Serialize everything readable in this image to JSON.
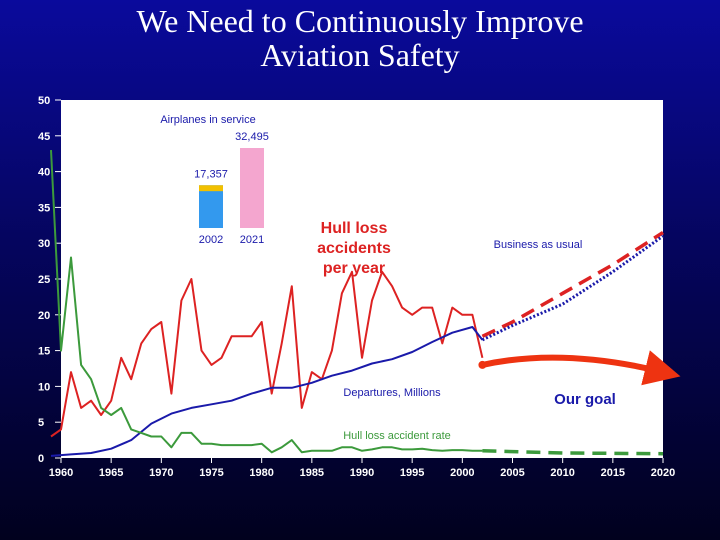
{
  "slide": {
    "title_line1": "We Need to Continuously Improve",
    "title_line2": "Aviation Safety"
  },
  "chart_data": {
    "type": "line",
    "title": "",
    "xlabel": "",
    "ylabel": "",
    "xlim": [
      1960,
      2020
    ],
    "ylim": [
      0,
      50
    ],
    "x_ticks": [
      1960,
      1965,
      1970,
      1975,
      1980,
      1985,
      1990,
      1995,
      2000,
      2005,
      2010,
      2015,
      2020
    ],
    "y_ticks": [
      0,
      5,
      10,
      15,
      20,
      25,
      30,
      35,
      40,
      45,
      50
    ],
    "grid": false,
    "series": [
      {
        "name": "Hull loss accidents per year",
        "color": "#dd2222",
        "style": "solid",
        "x": [
          1959,
          1960,
          1961,
          1962,
          1963,
          1964,
          1965,
          1966,
          1967,
          1968,
          1969,
          1970,
          1971,
          1972,
          1973,
          1974,
          1975,
          1976,
          1977,
          1978,
          1979,
          1980,
          1981,
          1982,
          1983,
          1984,
          1985,
          1986,
          1987,
          1988,
          1989,
          1990,
          1991,
          1992,
          1993,
          1994,
          1995,
          1996,
          1997,
          1998,
          1999,
          2000,
          2001,
          2002
        ],
        "values": [
          3,
          4,
          12,
          7,
          8,
          6,
          8,
          14,
          11,
          16,
          18,
          19,
          9,
          22,
          25,
          15,
          13,
          14,
          17,
          17,
          17,
          19,
          9,
          16,
          24,
          7,
          12,
          11,
          15,
          23,
          26,
          14,
          22,
          26,
          24,
          21,
          20,
          21,
          21,
          16,
          21,
          20,
          20,
          14
        ]
      },
      {
        "name": "Departures, Millions",
        "color": "#1a1aaa",
        "style": "solid",
        "x": [
          1959,
          1961,
          1963,
          1965,
          1967,
          1969,
          1971,
          1973,
          1975,
          1977,
          1979,
          1981,
          1983,
          1985,
          1987,
          1989,
          1991,
          1993,
          1995,
          1997,
          1999,
          2001,
          2002
        ],
        "values": [
          0.3,
          0.5,
          0.7,
          1.3,
          2.5,
          4.8,
          6.2,
          7.0,
          7.5,
          8.0,
          9.0,
          9.8,
          9.8,
          10.5,
          11.5,
          12.2,
          13.2,
          13.8,
          14.8,
          16.2,
          17.5,
          18.3,
          16.5
        ]
      },
      {
        "name": "Hull loss accident rate",
        "color": "#3c9a3c",
        "style": "solid",
        "x": [
          1959,
          1960,
          1961,
          1962,
          1963,
          1964,
          1965,
          1966,
          1967,
          1968,
          1969,
          1970,
          1971,
          1972,
          1973,
          1974,
          1975,
          1976,
          1977,
          1978,
          1979,
          1980,
          1981,
          1982,
          1983,
          1984,
          1985,
          1986,
          1987,
          1988,
          1989,
          1990,
          1991,
          1992,
          1993,
          1994,
          1995,
          1996,
          1997,
          1998,
          1999,
          2000,
          2001,
          2002
        ],
        "values": [
          43,
          15,
          28,
          13,
          11,
          7,
          6,
          7,
          4,
          3.5,
          3,
          3,
          1.5,
          3.5,
          3.5,
          2,
          2,
          1.8,
          1.8,
          1.8,
          1.8,
          2,
          0.8,
          1.5,
          2.5,
          0.8,
          1,
          1,
          1,
          1.5,
          1.5,
          1,
          1.2,
          1.5,
          1.5,
          1.2,
          1.2,
          1.3,
          1.1,
          1,
          1.1,
          1.1,
          1,
          1
        ]
      },
      {
        "name": "Business as usual (accidents projection)",
        "color": "#dd2222",
        "style": "dashed",
        "x": [
          2002,
          2005,
          2010,
          2015,
          2020
        ],
        "values": [
          17,
          19,
          23,
          27,
          31.5
        ]
      },
      {
        "name": "Departures projection",
        "color": "#1a1aaa",
        "style": "dotted",
        "x": [
          2002,
          2005,
          2010,
          2015,
          2020
        ],
        "values": [
          16.5,
          18.5,
          21.5,
          26,
          31
        ]
      },
      {
        "name": "Hull loss accident rate projection",
        "color": "#3c9a3c",
        "style": "dashed",
        "x": [
          2002,
          2010,
          2020
        ],
        "values": [
          1,
          0.7,
          0.6
        ]
      }
    ],
    "goal_arrow": {
      "label": "Our goal",
      "color": "#ee3311",
      "x": [
        2002,
        2010,
        2020
      ],
      "values": [
        13,
        13.5,
        12
      ]
    },
    "inset": {
      "title": "Airplanes in service",
      "categories": [
        "2002",
        "2021"
      ],
      "values": [
        17357,
        32495
      ],
      "value_labels": [
        "17,357",
        "32,495"
      ],
      "colors": [
        "#3399ee",
        "#f4a6cf"
      ],
      "segment_top_color": "#f2c000",
      "segment_top_value": 2400
    },
    "annotations": {
      "hull_loss_label": [
        "Hull loss",
        "accidents",
        "per year"
      ],
      "business_as_usual": "Business as usual",
      "departures": "Departures, Millions",
      "rate": "Hull loss accident rate",
      "our_goal": "Our goal"
    }
  }
}
